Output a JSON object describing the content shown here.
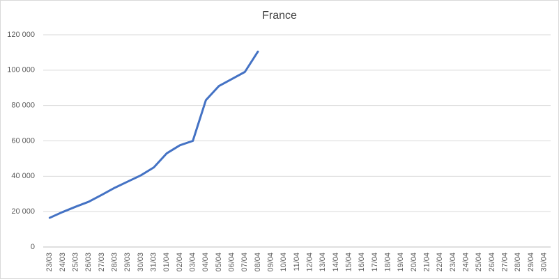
{
  "chart_data": {
    "type": "line",
    "title": "France",
    "categories": [
      "23/03",
      "24/03",
      "25/03",
      "26/03",
      "27/03",
      "28/03",
      "29/03",
      "30/03",
      "31/03",
      "01/04",
      "02/04",
      "03/04",
      "04/04",
      "05/04",
      "06/04",
      "07/04",
      "08/04",
      "09/04",
      "10/04",
      "11/04",
      "12/04",
      "13/04",
      "14/04",
      "15/04",
      "16/04",
      "17/04",
      "18/04",
      "19/04",
      "20/04",
      "21/04",
      "22/04",
      "23/04",
      "24/04",
      "25/04",
      "26/04",
      "27/04",
      "28/04",
      "29/04",
      "30/04"
    ],
    "series": [
      {
        "name": "France",
        "color": "#4472c4",
        "values": [
          16500,
          19800,
          22800,
          25600,
          29500,
          33500,
          37000,
          40500,
          45000,
          53000,
          57500,
          60000,
          83000,
          91000,
          95000,
          99000,
          110500,
          null,
          null,
          null,
          null,
          null,
          null,
          null,
          null,
          null,
          null,
          null,
          null,
          null,
          null,
          null,
          null,
          null,
          null,
          null,
          null,
          null,
          null
        ]
      }
    ],
    "ylim": [
      0,
      120000
    ],
    "yticks": [
      0,
      {
        "value": 20000,
        "label": "20 000"
      },
      {
        "value": 40000,
        "label": "40 000"
      },
      {
        "value": 60000,
        "label": "60 000"
      },
      {
        "value": 80000,
        "label": "80 000"
      },
      {
        "value": 100000,
        "label": "100 000"
      },
      {
        "value": 120000,
        "label": "120 000"
      }
    ],
    "grid": true
  }
}
